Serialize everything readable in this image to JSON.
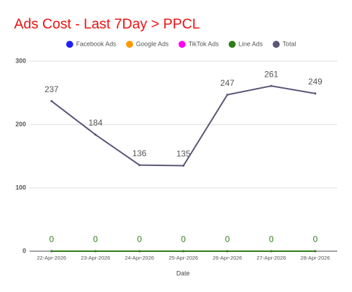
{
  "chart_data": {
    "type": "line",
    "title": "Ads Cost - Last 7Day > PPCL",
    "x_label": "Date",
    "categories": [
      "22-Apr-2026",
      "23-Apr-2026",
      "24-Apr-2026",
      "25-Apr-2026",
      "26-Apr-2026",
      "27-Apr-2026",
      "28-Apr-2026"
    ],
    "series": [
      {
        "name": "Facebook Ads",
        "color": "#1f1fff",
        "values": [
          0,
          0,
          0,
          0,
          0,
          0,
          0
        ],
        "show_labels": false
      },
      {
        "name": "Google Ads",
        "color": "#ff9900",
        "values": [
          0,
          0,
          0,
          0,
          0,
          0,
          0
        ],
        "show_labels": false
      },
      {
        "name": "TikTok Ads",
        "color": "#ff00ff",
        "values": [
          0,
          0,
          0,
          0,
          0,
          0,
          0
        ],
        "show_labels": false
      },
      {
        "name": "Line Ads",
        "color": "#2e7d16",
        "values": [
          0,
          0,
          0,
          0,
          0,
          0,
          0
        ],
        "show_labels": true
      },
      {
        "name": "Total",
        "color": "#5a5577",
        "values": [
          237,
          184,
          136,
          135,
          247,
          261,
          249
        ],
        "show_labels": true
      }
    ],
    "ylim": [
      0,
      300
    ],
    "yticks": [
      0,
      100,
      200,
      300
    ],
    "grid": true,
    "legend": "top",
    "title_color": "#ee1111"
  }
}
